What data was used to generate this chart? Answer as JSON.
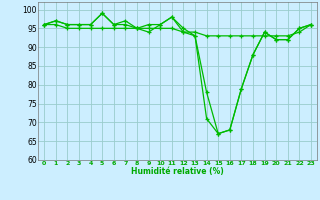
{
  "title": "",
  "xlabel": "Humidité relative (%)",
  "ylabel": "",
  "background_color": "#cceeff",
  "grid_color": "#99cccc",
  "line_color": "#00bb00",
  "xlim": [
    -0.5,
    23.5
  ],
  "ylim": [
    60,
    102
  ],
  "yticks": [
    60,
    65,
    70,
    75,
    80,
    85,
    90,
    95,
    100
  ],
  "xticks": [
    0,
    1,
    2,
    3,
    4,
    5,
    6,
    7,
    8,
    9,
    10,
    11,
    12,
    13,
    14,
    15,
    16,
    17,
    18,
    19,
    20,
    21,
    22,
    23
  ],
  "series1": [
    96,
    97,
    96,
    96,
    96,
    99,
    96,
    96,
    95,
    94,
    96,
    98,
    94,
    93,
    78,
    67,
    68,
    79,
    88,
    94,
    92,
    92,
    95,
    96
  ],
  "series2": [
    96,
    96,
    95,
    95,
    95,
    95,
    95,
    95,
    95,
    95,
    95,
    95,
    94,
    94,
    93,
    93,
    93,
    93,
    93,
    93,
    93,
    93,
    94,
    96
  ],
  "series3": [
    96,
    97,
    96,
    96,
    96,
    99,
    96,
    97,
    95,
    96,
    96,
    98,
    95,
    93,
    71,
    67,
    68,
    79,
    88,
    94,
    92,
    92,
    95,
    96
  ]
}
